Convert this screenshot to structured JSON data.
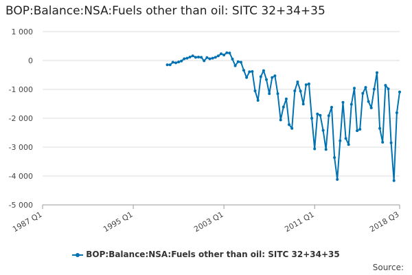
{
  "title": "BOP:Balance:NSA:Fuels other than oil: SITC 32+34+35",
  "source_label": "Source:",
  "chart_data": {
    "type": "line",
    "title": "BOP:Balance:NSA:Fuels other than oil: SITC 32+34+35",
    "xlabel": "",
    "ylabel": "",
    "ylim": [
      -5000,
      1000
    ],
    "yticks": [
      1000,
      0,
      -1000,
      -2000,
      -3000,
      -4000,
      -5000
    ],
    "ytick_labels": [
      "1 000",
      "0",
      "-1 000",
      "-2 000",
      "-3 000",
      "-4 000",
      "-5 000"
    ],
    "x_range": [
      "1987 Q1",
      "2018 Q3"
    ],
    "xtick_labels": [
      "1987 Q1",
      "1995 Q1",
      "2003 Q1",
      "2011 Q1",
      "2018 Q3"
    ],
    "grid": true,
    "legend_position": "bottom",
    "color": "#0072b2",
    "series": [
      {
        "name": "BOP:Balance:NSA:Fuels other than oil: SITC 32+34+35",
        "x": [
          "1998 Q1",
          "1998 Q2",
          "1998 Q3",
          "1998 Q4",
          "1999 Q1",
          "1999 Q2",
          "1999 Q3",
          "1999 Q4",
          "2000 Q1",
          "2000 Q2",
          "2000 Q3",
          "2000 Q4",
          "2001 Q1",
          "2001 Q2",
          "2001 Q3",
          "2001 Q4",
          "2002 Q1",
          "2002 Q2",
          "2002 Q3",
          "2002 Q4",
          "2003 Q1",
          "2003 Q2",
          "2003 Q3",
          "2003 Q4",
          "2004 Q1",
          "2004 Q2",
          "2004 Q3",
          "2004 Q4",
          "2005 Q1",
          "2005 Q2",
          "2005 Q3",
          "2005 Q4",
          "2006 Q1",
          "2006 Q2",
          "2006 Q3",
          "2006 Q4",
          "2007 Q1",
          "2007 Q2",
          "2007 Q3",
          "2007 Q4",
          "2008 Q1",
          "2008 Q2",
          "2008 Q3",
          "2008 Q4",
          "2009 Q1",
          "2009 Q2",
          "2009 Q3",
          "2009 Q4",
          "2010 Q1",
          "2010 Q2",
          "2010 Q3",
          "2010 Q4",
          "2011 Q1",
          "2011 Q2",
          "2011 Q3",
          "2011 Q4",
          "2012 Q1",
          "2012 Q2",
          "2012 Q3",
          "2012 Q4",
          "2013 Q1",
          "2013 Q2",
          "2013 Q3",
          "2013 Q4",
          "2014 Q1",
          "2014 Q2",
          "2014 Q3",
          "2014 Q4",
          "2015 Q1",
          "2015 Q2",
          "2015 Q3",
          "2015 Q4",
          "2016 Q1",
          "2016 Q2",
          "2016 Q3",
          "2016 Q4",
          "2017 Q1",
          "2017 Q2",
          "2017 Q3",
          "2017 Q4",
          "2018 Q1",
          "2018 Q2",
          "2018 Q3"
        ],
        "values": [
          -150,
          -150,
          -60,
          -80,
          -50,
          -20,
          60,
          80,
          120,
          160,
          110,
          120,
          110,
          -10,
          100,
          60,
          80,
          110,
          160,
          230,
          190,
          270,
          260,
          50,
          -180,
          -40,
          -60,
          -340,
          -590,
          -390,
          -380,
          -1050,
          -1380,
          -560,
          -350,
          -660,
          -1150,
          -590,
          -530,
          -1150,
          -2060,
          -1610,
          -1330,
          -2220,
          -2350,
          -1050,
          -740,
          -1060,
          -1510,
          -840,
          -810,
          -2000,
          -3060,
          -1850,
          -1900,
          -2420,
          -3080,
          -1910,
          -1620,
          -3360,
          -4120,
          -2780,
          -1450,
          -2700,
          -2910,
          -1520,
          -960,
          -2430,
          -2380,
          -1140,
          -930,
          -1420,
          -1640,
          -990,
          -420,
          -2350,
          -2830,
          -860,
          -980,
          -2850,
          -4160,
          -1810,
          -1090
        ]
      }
    ]
  }
}
